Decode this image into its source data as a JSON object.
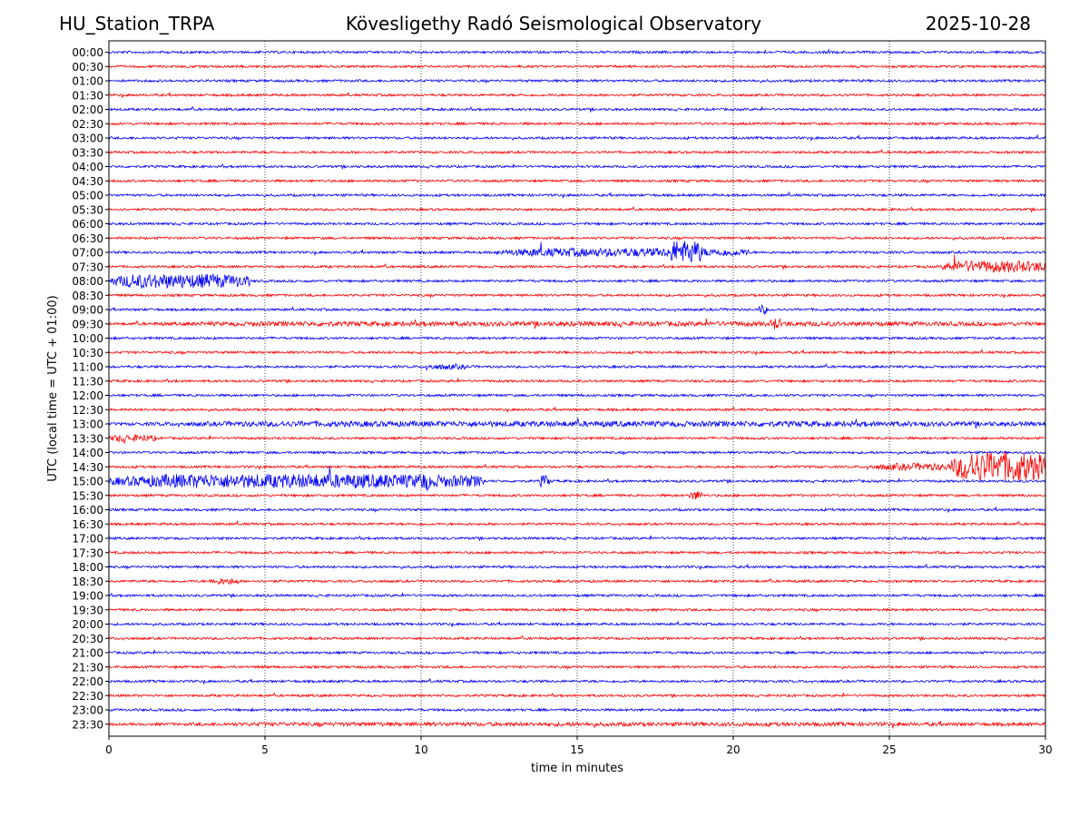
{
  "header": {
    "station": "HU_Station_TRPA",
    "title": "Kövesligethy Radó Seismological Observatory",
    "date": "2025-10-28"
  },
  "chart_data": {
    "type": "line",
    "title": "Kövesligethy Radó Seismological Observatory",
    "xlabel": "time in minutes",
    "ylabel": "UTC (local time = UTC + 01:00)",
    "xlim": [
      0,
      30
    ],
    "xticks": [
      0,
      5,
      10,
      15,
      20,
      25,
      30
    ],
    "xtick_labels": [
      "0",
      "5",
      "10",
      "15",
      "20",
      "25",
      "30"
    ],
    "vertical_gridlines_at": [
      5,
      10,
      15,
      20,
      25
    ],
    "row_colors": [
      "#0000ff",
      "#ff0000"
    ],
    "rows": [
      "00:00",
      "00:30",
      "01:00",
      "01:30",
      "02:00",
      "02:30",
      "03:00",
      "03:30",
      "04:00",
      "04:30",
      "05:00",
      "05:30",
      "06:00",
      "06:30",
      "07:00",
      "07:30",
      "08:00",
      "08:30",
      "09:00",
      "09:30",
      "10:00",
      "10:30",
      "11:00",
      "11:30",
      "12:00",
      "12:30",
      "13:00",
      "13:30",
      "14:00",
      "14:30",
      "15:00",
      "15:30",
      "16:00",
      "16:30",
      "17:00",
      "17:30",
      "18:00",
      "18:30",
      "19:00",
      "19:30",
      "20:00",
      "20:30",
      "21:00",
      "21:30",
      "22:00",
      "22:30",
      "23:00",
      "23:30"
    ],
    "noise_level": 0.15,
    "events": [
      {
        "row": "07:00",
        "start": 12.4,
        "end": 20.5,
        "amplitude": 0.55
      },
      {
        "row": "07:00",
        "start": 17.9,
        "end": 19.0,
        "amplitude": 1.5
      },
      {
        "row": "07:30",
        "start": 26.7,
        "end": 30.0,
        "amplitude": 0.75
      },
      {
        "row": "08:00",
        "start": 0.0,
        "end": 4.5,
        "amplitude": 0.9
      },
      {
        "row": "09:30",
        "start": 0.0,
        "end": 30.0,
        "amplitude": 0.3
      },
      {
        "row": "09:30",
        "start": 21.2,
        "end": 21.5,
        "amplitude": 0.8
      },
      {
        "row": "09:00",
        "start": 20.8,
        "end": 21.1,
        "amplitude": 0.6
      },
      {
        "row": "11:00",
        "start": 10.0,
        "end": 11.5,
        "amplitude": 0.35
      },
      {
        "row": "13:00",
        "start": 0.0,
        "end": 30.0,
        "amplitude": 0.35
      },
      {
        "row": "13:30",
        "start": 0.0,
        "end": 1.5,
        "amplitude": 0.45
      },
      {
        "row": "14:30",
        "start": 24.2,
        "end": 30.0,
        "amplitude": 0.45
      },
      {
        "row": "14:30",
        "start": 27.0,
        "end": 30.0,
        "amplitude": 1.9
      },
      {
        "row": "15:00",
        "start": 0.0,
        "end": 12.0,
        "amplitude": 0.9
      },
      {
        "row": "15:00",
        "start": 9.9,
        "end": 10.3,
        "amplitude": 1.2
      },
      {
        "row": "15:00",
        "start": 13.8,
        "end": 14.1,
        "amplitude": 0.8
      },
      {
        "row": "15:30",
        "start": 18.6,
        "end": 19.0,
        "amplitude": 0.6
      },
      {
        "row": "18:30",
        "start": 3.2,
        "end": 4.2,
        "amplitude": 0.4
      },
      {
        "row": "23:30",
        "start": 0.0,
        "end": 30.0,
        "amplitude": 0.25
      }
    ]
  }
}
